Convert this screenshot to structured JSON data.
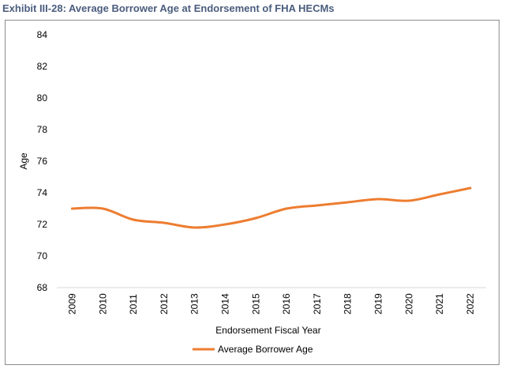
{
  "exhibit": {
    "title": "Exhibit III-28: Average Borrower Age at Endorsement of FHA HECMs"
  },
  "chart_data": {
    "type": "line",
    "title": "Exhibit III-28: Average Borrower Age at Endorsement of FHA HECMs",
    "xlabel": "Endorsement Fiscal Year",
    "ylabel": "Age",
    "ylim": [
      68,
      84
    ],
    "yticks": [
      68,
      70,
      72,
      74,
      76,
      78,
      80,
      82,
      84
    ],
    "grid": false,
    "legend_position": "bottom",
    "categories": [
      "2009",
      "2010",
      "2011",
      "2012",
      "2013",
      "2014",
      "2015",
      "2016",
      "2017",
      "2018",
      "2019",
      "2020",
      "2021",
      "2022"
    ],
    "series": [
      {
        "name": "Average Borrower Age",
        "color": "#ed7d31",
        "values": [
          73.0,
          73.0,
          72.3,
          72.1,
          71.8,
          72.0,
          72.4,
          73.0,
          73.2,
          73.4,
          73.6,
          73.5,
          73.9,
          74.3
        ]
      }
    ]
  }
}
